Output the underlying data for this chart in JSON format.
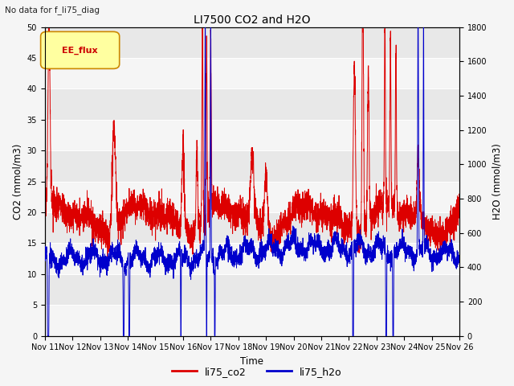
{
  "title": "LI7500 CO2 and H2O",
  "annotation": "No data for f_li75_diag",
  "legend_box_label": "EE_flux",
  "xlabel": "Time",
  "ylabel_left": "CO2 (mmol/m3)",
  "ylabel_right": "H2O (mmol/m3)",
  "ylim_left": [
    0,
    50
  ],
  "ylim_right": [
    0,
    1800
  ],
  "yticks_left": [
    0,
    5,
    10,
    15,
    20,
    25,
    30,
    35,
    40,
    45,
    50
  ],
  "yticks_right": [
    0,
    200,
    400,
    600,
    800,
    1000,
    1200,
    1400,
    1600,
    1800
  ],
  "xtick_labels": [
    "Nov 11",
    "Nov 12",
    "Nov 13",
    "Nov 14",
    "Nov 15",
    "Nov 16",
    "Nov 17",
    "Nov 18",
    "Nov 19",
    "Nov 20",
    "Nov 21",
    "Nov 22",
    "Nov 23",
    "Nov 24",
    "Nov 25",
    "Nov 26"
  ],
  "color_co2": "#dd0000",
  "color_h2o": "#0000cc",
  "legend_line_co2": "li75_co2",
  "legend_line_h2o": "li75_h2o",
  "plot_bg": "#e8e8e8",
  "band_color_light": "#f5f5f5",
  "fig_bg": "#f5f5f5"
}
